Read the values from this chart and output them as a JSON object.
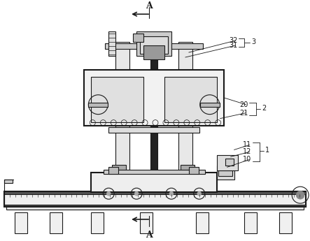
{
  "bg_color": "#ffffff",
  "line_color": "#1a1a1a",
  "line_width": 0.8,
  "thick_line": 1.5,
  "fig_width": 4.43,
  "fig_height": 3.45,
  "labels": {
    "A_top": "A",
    "A_bottom": "A",
    "n32": "32",
    "n31": "31",
    "n3": "3",
    "n20": "20",
    "n2": "2",
    "n21": "21",
    "n11": "11",
    "n12": "12",
    "n1": "1",
    "n10": "10"
  },
  "font_size_label": 9,
  "font_size_num": 7
}
